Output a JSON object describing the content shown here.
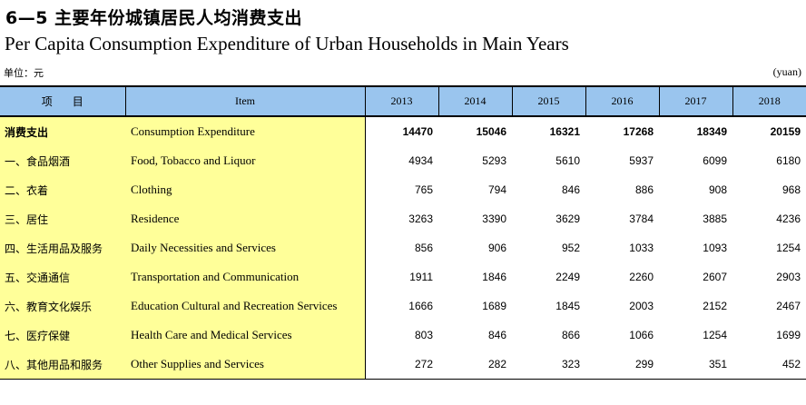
{
  "title_cn": "6—5  主要年份城镇居民人均消费支出",
  "title_en": "Per Capita Consumption Expenditure of Urban Households in Main Years",
  "unit_cn": "单位：元",
  "unit_en": "(yuan)",
  "header": {
    "item_cn": "项目",
    "item_en": "Item",
    "years": [
      "2013",
      "2014",
      "2015",
      "2016",
      "2017",
      "2018"
    ]
  },
  "rows": [
    {
      "cn": "消费支出",
      "en": "Consumption Expenditure",
      "values": [
        "14470",
        "15046",
        "16321",
        "17268",
        "18349",
        "20159"
      ]
    },
    {
      "cn": "一、食品烟酒",
      "en": "Food, Tobacco and Liquor",
      "values": [
        "4934",
        "5293",
        "5610",
        "5937",
        "6099",
        "6180"
      ]
    },
    {
      "cn": "二、衣着",
      "en": "Clothing",
      "values": [
        "765",
        "794",
        "846",
        "886",
        "908",
        "968"
      ]
    },
    {
      "cn": "三、居住",
      "en": "Residence",
      "values": [
        "3263",
        "3390",
        "3629",
        "3784",
        "3885",
        "4236"
      ]
    },
    {
      "cn": "四、生活用品及服务",
      "en": "Daily Necessities and Services",
      "values": [
        "856",
        "906",
        "952",
        "1033",
        "1093",
        "1254"
      ]
    },
    {
      "cn": "五、交通通信",
      "en": "Transportation and Communication",
      "values": [
        "1911",
        "1846",
        "2249",
        "2260",
        "2607",
        "2903"
      ]
    },
    {
      "cn": "六、教育文化娱乐",
      "en": "Education Cultural and Recreation Services",
      "values": [
        "1666",
        "1689",
        "1845",
        "2003",
        "2152",
        "2467"
      ]
    },
    {
      "cn": "七、医疗保健",
      "en": "Health Care and Medical Services",
      "values": [
        "803",
        "846",
        "866",
        "1066",
        "1254",
        "1699"
      ]
    },
    {
      "cn": "八、其他用品和服务",
      "en": "Other Supplies and Services",
      "values": [
        "272",
        "282",
        "323",
        "299",
        "351",
        "452"
      ]
    }
  ]
}
